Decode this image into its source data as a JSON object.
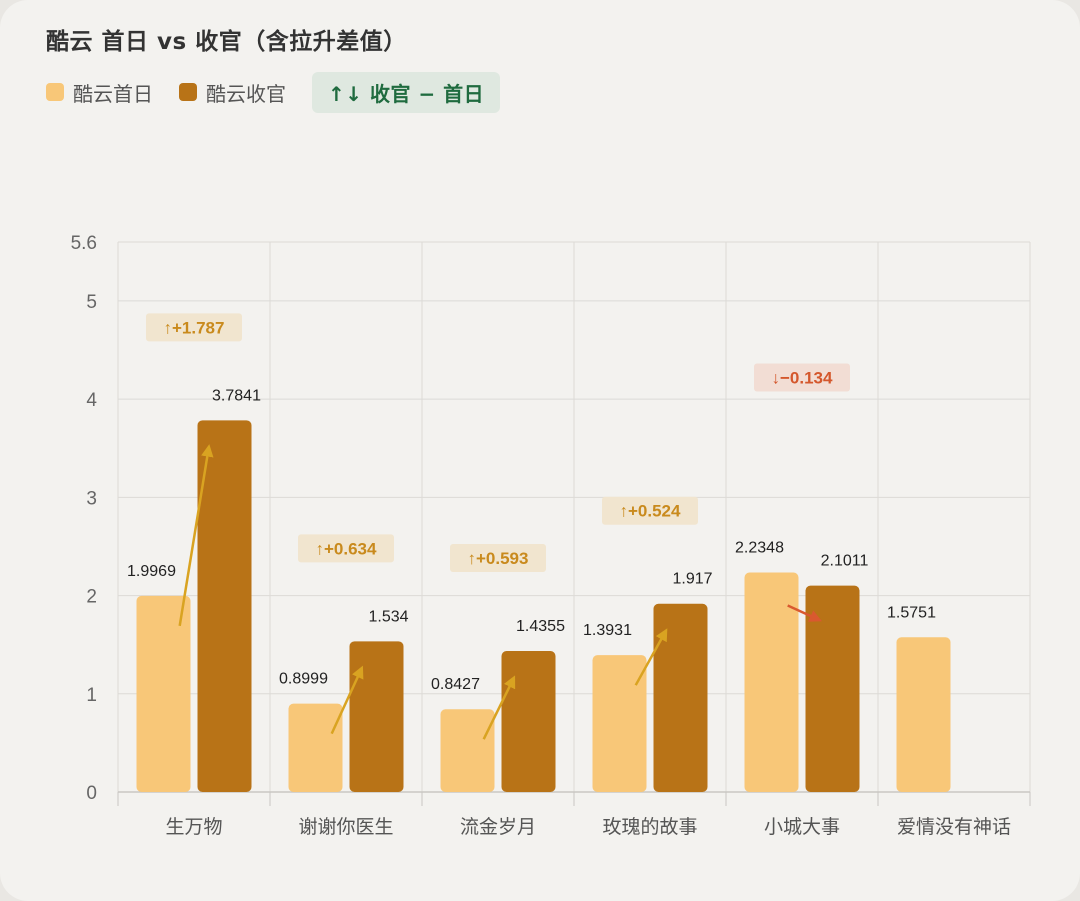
{
  "title": "酷云 首日 vs 收官（含拉升差值）",
  "legend": {
    "first_day": "酷云首日",
    "final": "酷云收官",
    "diff": "↑↓ 收官 − 首日"
  },
  "colors": {
    "first_day": "#f8c778",
    "final": "#b87317",
    "up": "#d9a321",
    "down": "#d9592f",
    "up_badge_bg": "#f1e5cf",
    "up_badge_text": "#c98a1d",
    "down_badge_bg": "#f2ddd4",
    "down_badge_text": "#d4572c"
  },
  "chart_data": {
    "type": "bar",
    "categories": [
      "生万物",
      "谢谢你医生",
      "流金岁月",
      "玫瑰的故事",
      "小城大事",
      "爱情没有神话"
    ],
    "series": [
      {
        "name": "酷云首日",
        "values": [
          1.9969,
          0.8999,
          0.8427,
          1.3931,
          2.2348,
          1.5751
        ],
        "labels": [
          "1.9969",
          "0.8999",
          "0.8427",
          "1.3931",
          "2.2348",
          "1.5751"
        ]
      },
      {
        "name": "酷云收官",
        "values": [
          3.7841,
          1.534,
          1.4355,
          1.917,
          2.1011,
          null
        ],
        "labels": [
          "3.7841",
          "1.534",
          "1.4355",
          "1.917",
          "2.1011",
          ""
        ]
      }
    ],
    "diffs": [
      {
        "value": 1.787,
        "label": "↑+1.787",
        "direction": "up"
      },
      {
        "value": 0.634,
        "label": "↑+0.634",
        "direction": "up"
      },
      {
        "value": 0.593,
        "label": "↑+0.593",
        "direction": "up"
      },
      {
        "value": 0.524,
        "label": "↑+0.524",
        "direction": "up"
      },
      {
        "value": -0.134,
        "label": "↓−0.134",
        "direction": "down"
      },
      null
    ],
    "ylim": [
      0,
      5.6
    ],
    "yticks": [
      "0",
      "1",
      "2",
      "3",
      "4",
      "5",
      "5.6"
    ],
    "ytick_values": [
      0,
      1,
      2,
      3,
      4,
      5,
      5.6
    ],
    "grid": true,
    "legend_position": "top-left"
  }
}
